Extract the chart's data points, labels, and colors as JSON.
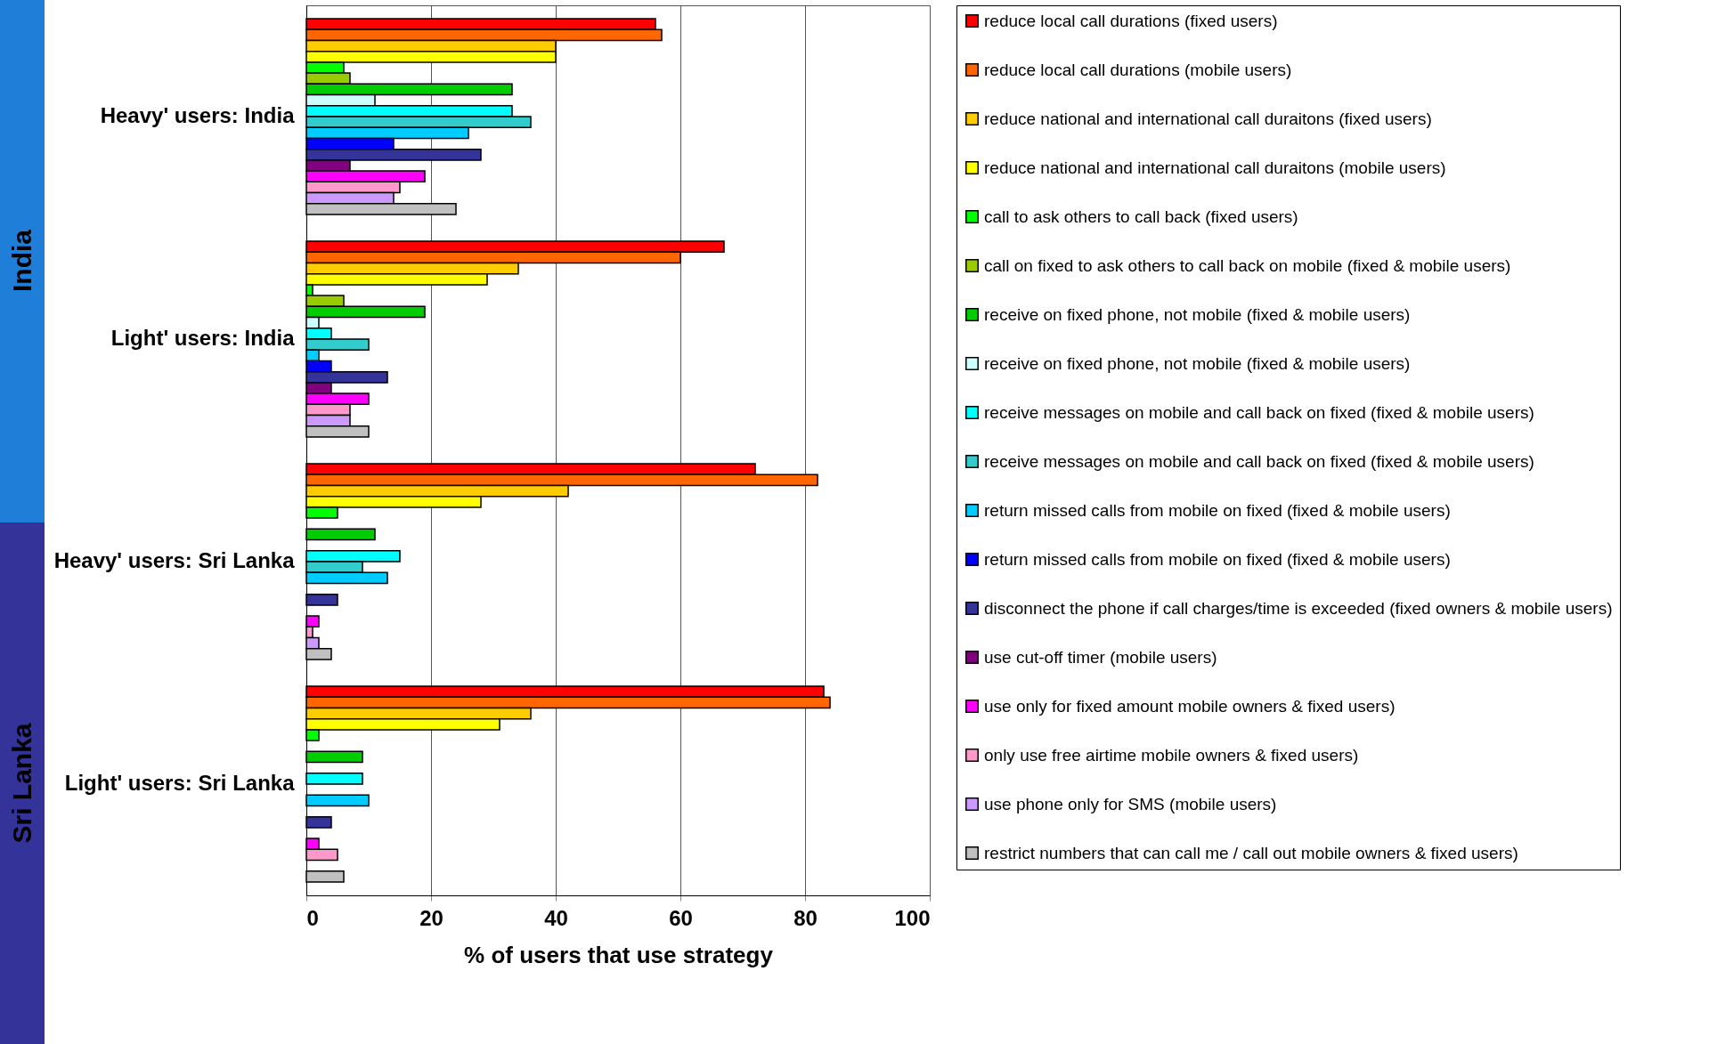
{
  "chart_data": {
    "type": "bar",
    "orientation": "horizontal",
    "xlabel": "% of users that use strategy",
    "categories": [
      "Heavy' users: India",
      "Light' users: India",
      "Heavy' users: Sri Lanka",
      "Light' users: Sri Lanka"
    ],
    "xlim": [
      0,
      100
    ],
    "xticks": [
      0,
      20,
      40,
      60,
      80,
      100
    ],
    "grid": "x",
    "legend": "right",
    "annotations": [
      "India",
      "Sri Lanka"
    ],
    "series": [
      {
        "name": "reduce local call durations (fixed users)",
        "color": "#ff0000",
        "values": [
          56,
          67,
          72,
          83
        ]
      },
      {
        "name": "reduce local call durations (mobile users)",
        "color": "#ff6600",
        "values": [
          57,
          60,
          82,
          84
        ]
      },
      {
        "name": "reduce national and international call duraitons (fixed users)",
        "color": "#ffcc00",
        "values": [
          40,
          34,
          42,
          36
        ]
      },
      {
        "name": "reduce national and international call duraitons (mobile users)",
        "color": "#ffff00",
        "values": [
          40,
          29,
          28,
          31
        ]
      },
      {
        "name": "call to ask others to call back (fixed users)",
        "color": "#00ff00",
        "values": [
          6,
          1,
          5,
          2
        ]
      },
      {
        "name": "call on fixed to ask others to call back on mobile (fixed & mobile users)",
        "color": "#99cc00",
        "values": [
          7,
          6,
          null,
          null
        ]
      },
      {
        "name": "receive on fixed phone, not mobile (fixed & mobile users)",
        "color": "#00cc00",
        "values": [
          33,
          19,
          11,
          9
        ]
      },
      {
        "name": "receive on fixed phone, not mobile (fixed & mobile users)",
        "color": "#ccffff",
        "values": [
          11,
          2,
          null,
          null
        ]
      },
      {
        "name": "receive messages on mobile and call back on fixed (fixed & mobile users)",
        "color": "#00ffff",
        "values": [
          33,
          4,
          15,
          9
        ]
      },
      {
        "name": "receive messages on mobile and call back on fixed (fixed & mobile users)",
        "color": "#33cccc",
        "values": [
          36,
          10,
          9,
          null
        ]
      },
      {
        "name": "return missed calls from mobile on fixed (fixed & mobile users)",
        "color": "#00ccff",
        "values": [
          26,
          2,
          13,
          10
        ]
      },
      {
        "name": "return missed calls from mobile on fixed (fixed & mobile users)",
        "color": "#0000ff",
        "values": [
          14,
          4,
          null,
          null
        ]
      },
      {
        "name": "disconnect the phone if call charges/time is exceeded (fixed owners & mobile users)",
        "color": "#333399",
        "values": [
          28,
          13,
          5,
          4
        ]
      },
      {
        "name": "use cut-off timer (mobile users)",
        "color": "#800080",
        "values": [
          7,
          4,
          null,
          null
        ]
      },
      {
        "name": "use only for fixed amount mobile owners & fixed users)",
        "color": "#ff00ff",
        "values": [
          19,
          10,
          2,
          2
        ]
      },
      {
        "name": "only use free airtime mobile owners & fixed users)",
        "color": "#ff99cc",
        "values": [
          15,
          7,
          1,
          5
        ]
      },
      {
        "name": "use phone only for SMS (mobile users)",
        "color": "#cc99ff",
        "values": [
          14,
          7,
          2,
          null
        ]
      },
      {
        "name": "restrict numbers that can call me / call out mobile owners & fixed users)",
        "color": "#c0c0c0",
        "values": [
          24,
          10,
          4,
          6
        ]
      }
    ]
  }
}
